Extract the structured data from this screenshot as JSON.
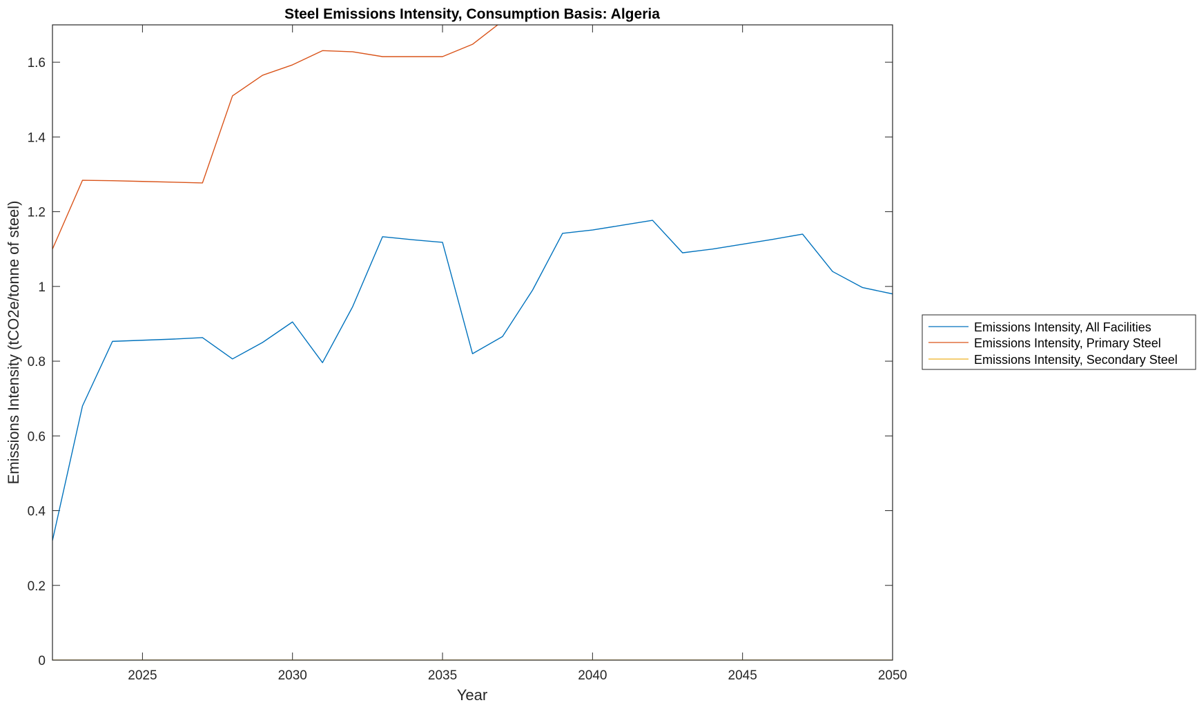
{
  "chart_data": {
    "type": "line",
    "title": "Steel Emissions Intensity, Consumption Basis: Algeria",
    "xlabel": "Year",
    "ylabel": "Emissions Intensity (tCO2e/tonne of steel)",
    "xlim": [
      2022,
      2050
    ],
    "ylim": [
      0,
      1.7
    ],
    "xticks": [
      2025,
      2030,
      2035,
      2040,
      2045,
      2050
    ],
    "yticks": [
      0,
      0.2,
      0.4,
      0.6,
      0.8,
      1,
      1.2,
      1.4,
      1.6
    ],
    "xtick_labels": [
      "2025",
      "2030",
      "2035",
      "2040",
      "2045",
      "2050"
    ],
    "ytick_labels": [
      "0",
      "0.2",
      "0.4",
      "0.6",
      "0.8",
      "1",
      "1.2",
      "1.4",
      "1.6"
    ],
    "grid": false,
    "legend_placement": "outside-right",
    "x": [
      2022,
      2023,
      2024,
      2025,
      2026,
      2027,
      2028,
      2029,
      2030,
      2031,
      2032,
      2033,
      2034,
      2035,
      2036,
      2037,
      2038,
      2039,
      2040,
      2041,
      2042,
      2043,
      2044,
      2045,
      2046,
      2047,
      2048,
      2049,
      2050
    ],
    "series": [
      {
        "name": "Emissions Intensity, All Facilities",
        "color": "#0072BD",
        "values": [
          0.32,
          0.68,
          0.853,
          0.856,
          0.859,
          0.863,
          0.806,
          0.85,
          0.905,
          0.796,
          0.945,
          1.133,
          1.125,
          1.118,
          0.82,
          0.866,
          0.99,
          1.142,
          1.151,
          1.164,
          1.177,
          1.09,
          1.1,
          1.113,
          1.126,
          1.14,
          1.04,
          0.997,
          0.98
        ]
      },
      {
        "name": "Emissions Intensity, Primary Steel",
        "color": "#D95319",
        "values": [
          1.1,
          1.284,
          1.283,
          1.281,
          1.279,
          1.277,
          1.51,
          1.565,
          1.593,
          1.631,
          1.628,
          1.615,
          1.615,
          1.615,
          1.648,
          1.71,
          1.71,
          1.71,
          1.71,
          1.71,
          1.71,
          1.71,
          1.71,
          1.71,
          1.71,
          1.71,
          1.71,
          1.71,
          1.71
        ]
      },
      {
        "name": "Emissions Intensity, Secondary Steel",
        "color": "#EDB120",
        "values": [
          0,
          0,
          0,
          0,
          0,
          0,
          0,
          0,
          0,
          0,
          0,
          0,
          0,
          0,
          0,
          0,
          0,
          0,
          0,
          0,
          0,
          0,
          0,
          0,
          0,
          0,
          0,
          0,
          0
        ]
      }
    ]
  }
}
